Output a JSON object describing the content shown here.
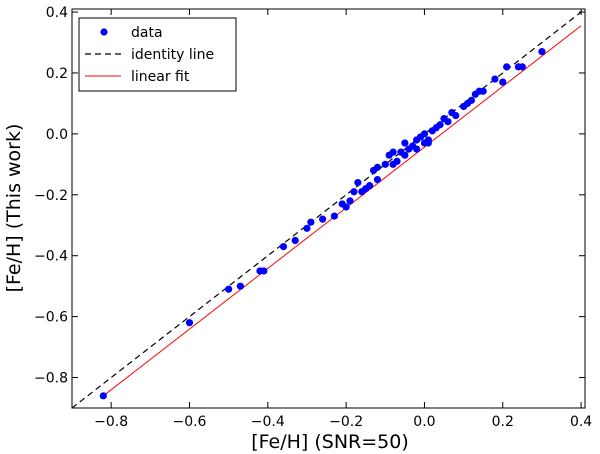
{
  "chart_data": {
    "type": "scatter",
    "xlabel": "[Fe/H] (SNR=50)",
    "ylabel": "[Fe/H] (This work)",
    "xlim": [
      -0.9,
      0.41
    ],
    "ylim": [
      -0.9,
      0.41
    ],
    "x_ticks": [
      -0.8,
      -0.6,
      -0.4,
      -0.2,
      0.0,
      0.2,
      0.4
    ],
    "x_tick_labels": [
      "−0.8",
      "−0.6",
      "−0.4",
      "−0.2",
      "0.0",
      "0.2",
      "0.4"
    ],
    "y_ticks": [
      -0.8,
      -0.6,
      -0.4,
      -0.2,
      0.0,
      0.2,
      0.4
    ],
    "y_tick_labels": [
      "−0.8",
      "−0.6",
      "−0.4",
      "−0.2",
      "0.0",
      "0.2",
      "0.4"
    ],
    "grid": false,
    "legend_position": "top-left",
    "series": [
      {
        "name": "data",
        "kind": "points",
        "color": "#0000ff",
        "points": [
          [
            -0.82,
            -0.86
          ],
          [
            -0.6,
            -0.62
          ],
          [
            -0.5,
            -0.51
          ],
          [
            -0.47,
            -0.5
          ],
          [
            -0.42,
            -0.45
          ],
          [
            -0.41,
            -0.45
          ],
          [
            -0.36,
            -0.37
          ],
          [
            -0.33,
            -0.35
          ],
          [
            -0.3,
            -0.31
          ],
          [
            -0.29,
            -0.29
          ],
          [
            -0.26,
            -0.28
          ],
          [
            -0.23,
            -0.27
          ],
          [
            -0.21,
            -0.23
          ],
          [
            -0.2,
            -0.24
          ],
          [
            -0.19,
            -0.22
          ],
          [
            -0.18,
            -0.19
          ],
          [
            -0.17,
            -0.16
          ],
          [
            -0.16,
            -0.19
          ],
          [
            -0.15,
            -0.18
          ],
          [
            -0.14,
            -0.17
          ],
          [
            -0.13,
            -0.12
          ],
          [
            -0.12,
            -0.15
          ],
          [
            -0.12,
            -0.11
          ],
          [
            -0.1,
            -0.1
          ],
          [
            -0.09,
            -0.07
          ],
          [
            -0.08,
            -0.1
          ],
          [
            -0.08,
            -0.06
          ],
          [
            -0.07,
            -0.09
          ],
          [
            -0.06,
            -0.06
          ],
          [
            -0.05,
            -0.07
          ],
          [
            -0.05,
            -0.03
          ],
          [
            -0.04,
            -0.05
          ],
          [
            -0.03,
            -0.04
          ],
          [
            -0.02,
            -0.02
          ],
          [
            -0.02,
            -0.05
          ],
          [
            -0.01,
            -0.01
          ],
          [
            0.0,
            0.0
          ],
          [
            0.0,
            -0.03
          ],
          [
            0.01,
            -0.02
          ],
          [
            0.01,
            -0.03
          ],
          [
            0.02,
            0.01
          ],
          [
            0.03,
            0.02
          ],
          [
            0.04,
            0.03
          ],
          [
            0.05,
            0.05
          ],
          [
            0.06,
            0.04
          ],
          [
            0.07,
            0.07
          ],
          [
            0.08,
            0.06
          ],
          [
            0.1,
            0.09
          ],
          [
            0.11,
            0.1
          ],
          [
            0.12,
            0.11
          ],
          [
            0.13,
            0.13
          ],
          [
            0.14,
            0.14
          ],
          [
            0.15,
            0.14
          ],
          [
            0.18,
            0.18
          ],
          [
            0.2,
            0.17
          ],
          [
            0.21,
            0.22
          ],
          [
            0.24,
            0.22
          ],
          [
            0.25,
            0.22
          ],
          [
            0.3,
            0.27
          ]
        ]
      },
      {
        "name": "identity line",
        "kind": "line",
        "color": "#000000",
        "dash": "dashed",
        "points": [
          [
            -0.9,
            -0.9
          ],
          [
            0.41,
            0.41
          ]
        ]
      },
      {
        "name": "linear fit",
        "kind": "line",
        "color": "#ff0000",
        "dash": "solid",
        "points": [
          [
            -0.82,
            -0.86
          ],
          [
            0.4,
            0.355
          ]
        ]
      }
    ]
  }
}
